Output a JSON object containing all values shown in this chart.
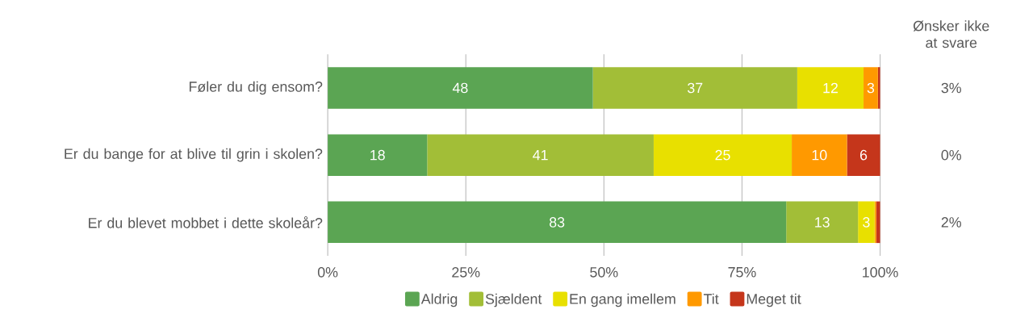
{
  "chart_data": {
    "type": "bar",
    "orientation": "horizontal",
    "stacked": true,
    "categories": [
      "Føler du dig ensom?",
      "Er du bange for at blive til grin i skolen?",
      "Er du blevet mobbet i dette skoleår?"
    ],
    "series": [
      {
        "name": "Aldrig",
        "color": "#5ba553",
        "values": [
          48,
          18,
          83
        ],
        "value_labels": [
          "48",
          "18",
          "83"
        ]
      },
      {
        "name": "Sjældent",
        "color": "#a2be37",
        "values": [
          37,
          41,
          13
        ],
        "value_labels": [
          "37",
          "41",
          "13"
        ]
      },
      {
        "name": "En gang imellem",
        "color": "#e8e000",
        "values": [
          12,
          25,
          3
        ],
        "value_labels": [
          "12",
          "25",
          "3"
        ]
      },
      {
        "name": "Tit",
        "color": "#ff9900",
        "values": [
          2.6,
          10,
          0.3
        ],
        "value_labels": [
          "3",
          "10",
          null
        ]
      },
      {
        "name": "Meget tit",
        "color": "#c5361b",
        "values": [
          0.4,
          6,
          0.7
        ],
        "value_labels": [
          null,
          "6",
          null
        ]
      }
    ],
    "xlim": [
      0,
      100
    ],
    "xticks": [
      {
        "value": 0,
        "label": "0%"
      },
      {
        "value": 25,
        "label": "25%"
      },
      {
        "value": 50,
        "label": "50%"
      },
      {
        "value": 75,
        "label": "75%"
      },
      {
        "value": 100,
        "label": "100%"
      }
    ],
    "grid": "x",
    "legend": "bottom",
    "annotations": [
      "Ønsker ikke at svare",
      "3%",
      "0%",
      "2%"
    ]
  }
}
